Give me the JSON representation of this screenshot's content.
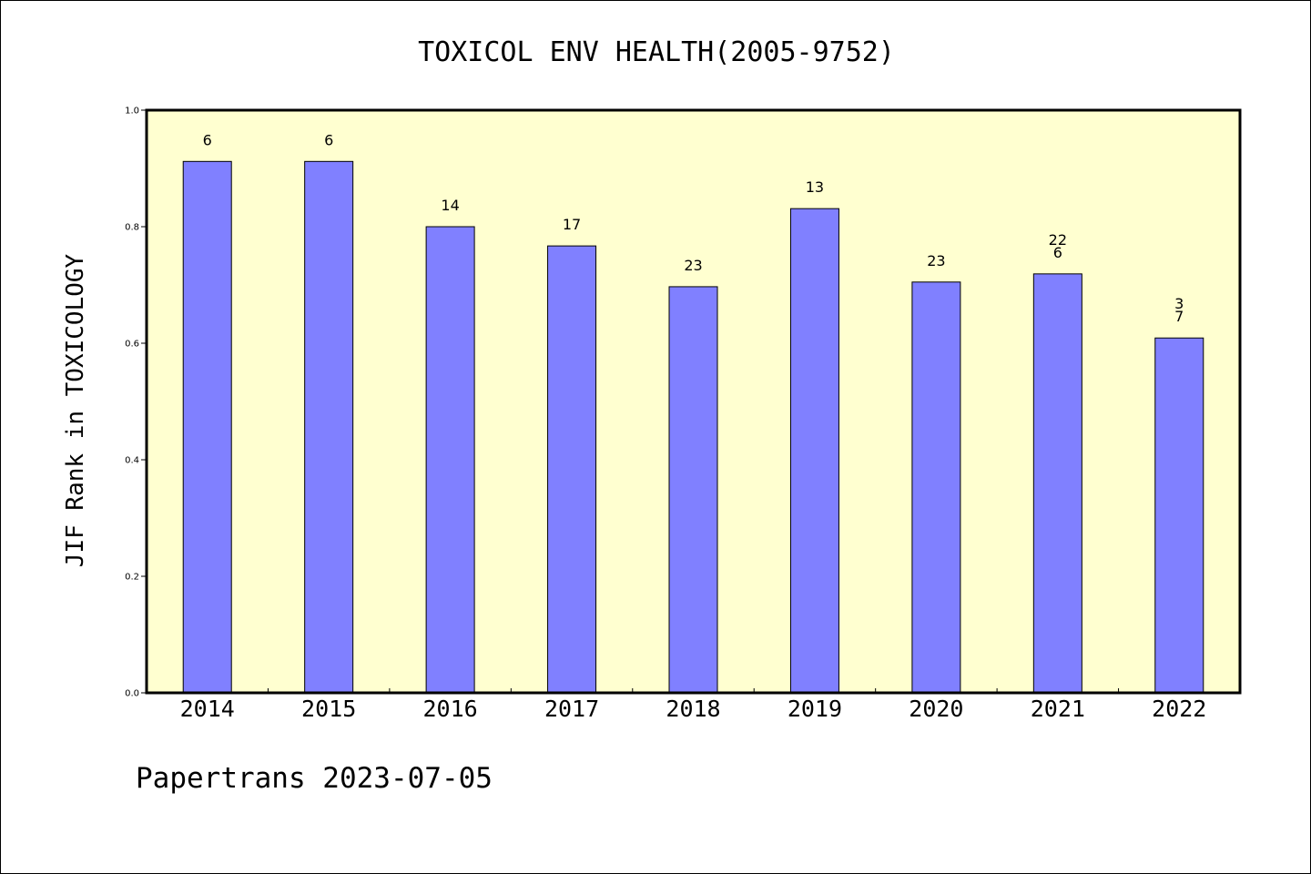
{
  "chart_data": {
    "type": "bar",
    "title": "TOXICOL ENV HEALTH(2005-9752)",
    "xlabel": "",
    "ylabel": "JIF Rank in TOXICOLOGY",
    "categories": [
      "2014",
      "2015",
      "2016",
      "2017",
      "2018",
      "2019",
      "2020",
      "2021",
      "2022"
    ],
    "values": [
      0.912,
      0.912,
      0.8,
      0.767,
      0.697,
      0.831,
      0.705,
      0.719,
      0.609
    ],
    "data_labels": [
      "6",
      "6",
      "14",
      "17",
      "23",
      "13",
      "23",
      "22\n6",
      "3\n7"
    ],
    "yticks": [
      "0.0",
      "0.2",
      "0.4",
      "0.6",
      "0.8",
      "1.0"
    ],
    "ylim": [
      0,
      1.0
    ],
    "grid": false,
    "legend": "none"
  },
  "footer": "Papertrans 2023-07-05",
  "colors": {
    "plot_background": "#ffffd0",
    "bar_fill": "#8080ff",
    "bar_stroke": "#000000",
    "axes": "#000000"
  }
}
